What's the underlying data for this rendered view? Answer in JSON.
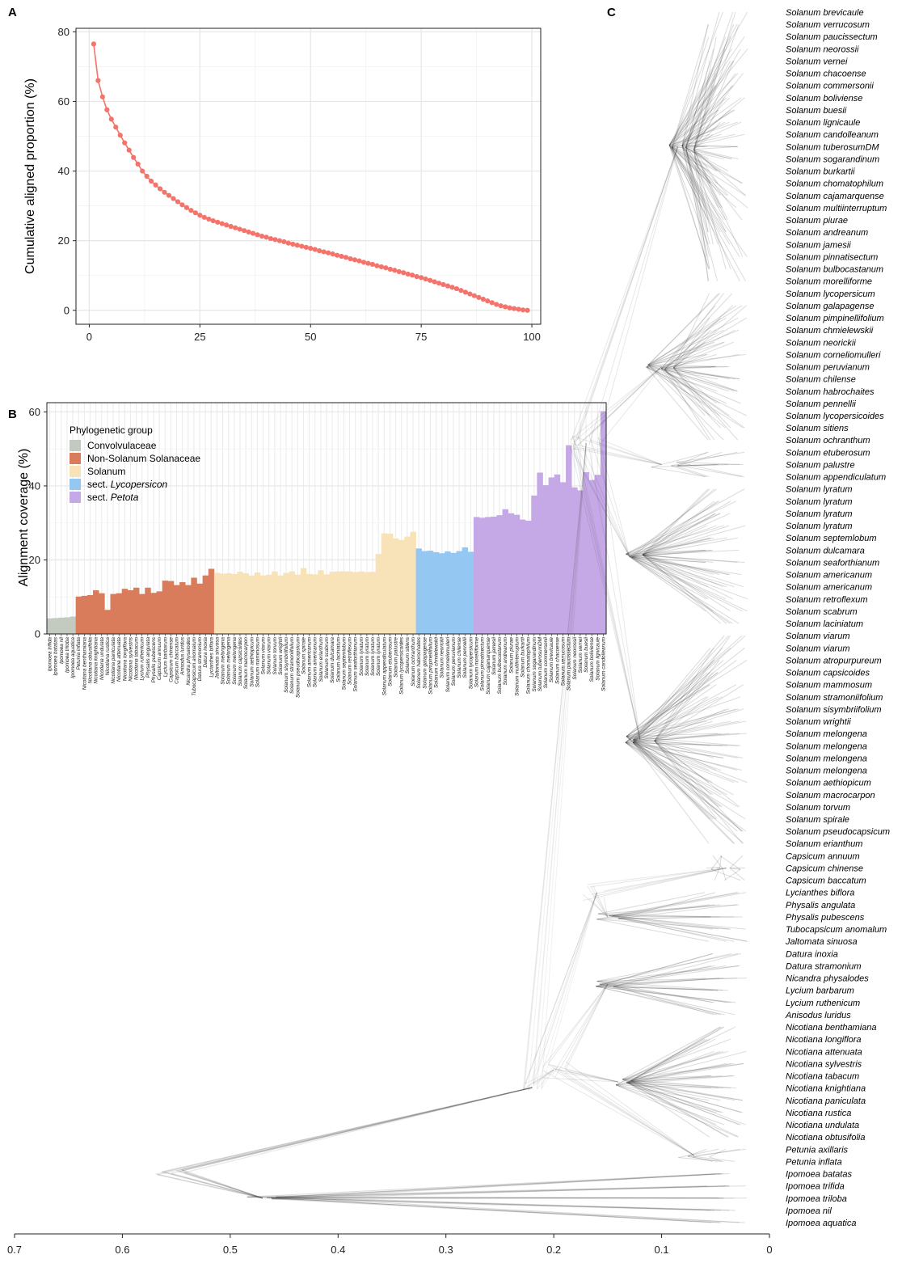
{
  "panels": {
    "a": "A",
    "b": "B",
    "c": "C"
  },
  "colors": {
    "line": "#f4736b",
    "convolvulaceae": "#c3cbc0",
    "non_solanum": "#d87c5c",
    "solanum": "#f8e2b8",
    "lycopersicon": "#94c8f2",
    "petota": "#c5a8e6",
    "tree": "#3a3a3a"
  },
  "chart_data": [
    {
      "type": "line",
      "panel": "A",
      "ylabel": "Cumulative aligned proportion (%)",
      "xlabel": "",
      "xlim": [
        -3,
        102
      ],
      "ylim": [
        -4,
        81
      ],
      "xticks": [
        0,
        25,
        50,
        75,
        100
      ],
      "yticks": [
        0,
        20,
        40,
        60,
        80
      ],
      "grid": true,
      "x": [
        1,
        2,
        3,
        4,
        5,
        6,
        7,
        8,
        9,
        10,
        11,
        12,
        13,
        14,
        15,
        16,
        17,
        18,
        19,
        20,
        21,
        22,
        23,
        24,
        25,
        26,
        27,
        28,
        29,
        30,
        31,
        32,
        33,
        34,
        35,
        36,
        37,
        38,
        39,
        40,
        41,
        42,
        43,
        44,
        45,
        46,
        47,
        48,
        49,
        50,
        51,
        52,
        53,
        54,
        55,
        56,
        57,
        58,
        59,
        60,
        61,
        62,
        63,
        64,
        65,
        66,
        67,
        68,
        69,
        70,
        71,
        72,
        73,
        74,
        75,
        76,
        77,
        78,
        79,
        80,
        81,
        82,
        83,
        84,
        85,
        86,
        87,
        88,
        89,
        90,
        91,
        92,
        93,
        94,
        95,
        96,
        97,
        98,
        99
      ],
      "y": [
        76.5,
        66,
        61.3,
        57.6,
        54.9,
        52.6,
        50.3,
        48.1,
        46,
        43.9,
        42,
        40,
        38.5,
        37.1,
        36,
        34.9,
        33.9,
        33,
        32.1,
        31.2,
        30.3,
        29.5,
        28.7,
        28,
        27.3,
        26.7,
        26.2,
        25.7,
        25.3,
        24.9,
        24.5,
        24.1,
        23.7,
        23.3,
        22.9,
        22.5,
        22.1,
        21.7,
        21.3,
        21,
        20.6,
        20.3,
        20,
        19.7,
        19.3,
        19,
        18.7,
        18.4,
        18.1,
        17.8,
        17.5,
        17.1,
        16.8,
        16.5,
        16.2,
        15.8,
        15.5,
        15.2,
        14.8,
        14.5,
        14.2,
        13.8,
        13.5,
        13.2,
        12.8,
        12.5,
        12.2,
        11.8,
        11.5,
        11.1,
        10.8,
        10.4,
        10.1,
        9.7,
        9.4,
        9,
        8.6,
        8.2,
        7.8,
        7.4,
        7,
        6.6,
        6.2,
        5.7,
        5.2,
        4.7,
        4.2,
        3.7,
        3.2,
        2.7,
        2.2,
        1.7,
        1.3,
        1,
        0.7,
        0.5,
        0.3,
        0.1,
        0
      ]
    },
    {
      "type": "bar",
      "panel": "B",
      "ylabel": "Alignment coverage (%)",
      "xlabel": "",
      "ylim": [
        0,
        62.5
      ],
      "yticks": [
        0,
        20,
        40,
        60
      ],
      "grid": true,
      "legend": {
        "title": "Phylogenetic group",
        "position": "top-left",
        "entries": [
          {
            "key": "convolvulaceae",
            "parts": [
              {
                "text": "Convolvulaceae",
                "italic": false
              }
            ]
          },
          {
            "key": "non_solanum",
            "parts": [
              {
                "text": "Non-Solanum Solanaceae",
                "italic": false
              }
            ]
          },
          {
            "key": "solanum",
            "parts": [
              {
                "text": "Solanum",
                "italic": false
              }
            ]
          },
          {
            "key": "lycopersicon",
            "parts": [
              {
                "text": "sect. ",
                "italic": false
              },
              {
                "text": "Lycopersicon",
                "italic": true
              }
            ]
          },
          {
            "key": "petota",
            "parts": [
              {
                "text": "sect. ",
                "italic": false
              },
              {
                "text": "Petota",
                "italic": true
              }
            ]
          }
        ]
      },
      "series_groups": [
        {
          "group": "convolvulaceae",
          "categories": [
            "Ipomoea trifida",
            "Ipomoea batatas",
            "Ipomoea nil",
            "Ipomoea triloba",
            "Ipomoea aquatica"
          ],
          "values": [
            4.2,
            4.3,
            4.4,
            4.5,
            4.7
          ]
        },
        {
          "group": "non_solanum",
          "categories": [
            "Petunia inflata",
            "Nicotiana benthamiana",
            "Nicotiana obtusifolia",
            "Nicotiana knightiana",
            "Nicotiana undulata",
            "Nicotiana rustica",
            "Nicotiana paniculata",
            "Nicotiana attenuata",
            "Nicotiana longiflora",
            "Nicotiana sylvestris",
            "Nicotiana tabacum",
            "Lycium ruthenicum",
            "Physalis angulata",
            "Physalis pubescens",
            "Capsicum annuum",
            "Lycium barbarum",
            "Capsicum chinense",
            "Capsicum baccatum",
            "Anisodus luridus",
            "Nicandra physalodes",
            "Tubocapsicum anomalum",
            "Datura stramonium",
            "Datura inoxia",
            "Lycianthes biflora"
          ],
          "values": [
            10.1,
            10.3,
            10.5,
            11.8,
            11,
            6.5,
            10.8,
            11,
            12.2,
            11.8,
            12.5,
            10.8,
            12.5,
            11.1,
            11.5,
            14.4,
            14.3,
            13.2,
            14,
            13.2,
            15.2,
            13.6,
            15.8,
            17.6
          ]
        },
        {
          "group": "solanum",
          "categories": [
            "Jaltomata sinuosa",
            "Solanum melongena",
            "Solanum melongena",
            "Solanum melongena",
            "Solanum capsicoides",
            "Solanum macrocarpon",
            "Solanum aethiopicum",
            "Solanum mammosum",
            "Solanum viarum",
            "Solanum viarum",
            "Solanum torvum",
            "Solanum wrightii",
            "Solanum sisymbriifolium",
            "Solanum stramoniifolium",
            "Solanum pseudocapsicum",
            "Solanum spirale",
            "Solanum americanum",
            "Solanum americanum",
            "Solanum erianthum",
            "Solanum scabrum",
            "Solanum dulcamara",
            "Solanum laciniatum",
            "Solanum septemlobum",
            "Solanum retroflexum",
            "Solanum seaforthianum",
            "Solanum lyratum",
            "Solanum lyratum",
            "Solanum lyratum",
            "Solanum lyratum",
            "Solanum appendiculatum",
            "Solanum etuberosum",
            "Solanum palustre",
            "Solanum lycopersicoides",
            "Solanum sitiens",
            "Solanum ochranthum"
          ],
          "values": [
            16.5,
            16.3,
            16.4,
            16.2,
            16.8,
            16.4,
            15.8,
            16.6,
            15.8,
            16,
            16.9,
            15.8,
            16.5,
            16.9,
            16,
            17.8,
            16.2,
            16.1,
            17.2,
            16.1,
            16.8,
            16.9,
            16.9,
            16.9,
            16.7,
            16.9,
            16.7,
            16.8,
            21.6,
            27.2,
            27.1,
            25.8,
            25.4,
            26.3,
            27.6
          ]
        },
        {
          "group": "lycopersicon",
          "categories": [
            "Solanum habrochaites",
            "Solanum galapagense",
            "Solanum pimpinellifolium",
            "Solanum chmielewskii",
            "Solanum neorickii",
            "Solanum corneliomulleri",
            "Solanum peruvianum",
            "Solanum chilense",
            "Solanum pennellii",
            "Solanum lycopersicum"
          ],
          "values": [
            23.1,
            22.4,
            22.5,
            22.1,
            21.8,
            22.3,
            21.9,
            22.4,
            23.4,
            22.2
          ]
        },
        {
          "group": "petota",
          "categories": [
            "Solanum morelliforme",
            "Solanum pinnatisectum",
            "Solanum cajamarquense",
            "Solanum jamesii",
            "Solanum bulbocastanum",
            "Solanum andreanum",
            "Solanum piurae",
            "Solanum multiinterruptum",
            "Solanum burkartii",
            "Solanum chomatophilum",
            "Solanum sogarandinum",
            "Solanum tuberosumDM",
            "Solanum commersonii",
            "Solanum brevicaule",
            "Solanum chacoense",
            "Solanum verrucosum",
            "Solanum paucissectum",
            "Solanum neorossii",
            "Solanum vernei",
            "Solanum buesii",
            "Solanum boliviense",
            "Solanum lignicaule",
            "Solanum candolleanum"
          ],
          "values": [
            31.6,
            31.4,
            31.6,
            31.7,
            32.1,
            33.7,
            32.6,
            32.2,
            30.9,
            30.6,
            37.4,
            43.6,
            40.2,
            42.3,
            43.1,
            41,
            51,
            39.6,
            38.8,
            43.7,
            41.6,
            43,
            60.2
          ]
        }
      ]
    },
    {
      "type": "tree",
      "panel": "C",
      "xlim": [
        0.7,
        0
      ],
      "xticks": [
        0.7,
        0.6,
        0.5,
        0.4,
        0.3,
        0.2,
        0.1,
        0
      ],
      "tips": [
        "Solanum brevicaule",
        "Solanum verrucosum",
        "Solanum paucissectum",
        "Solanum neorossii",
        "Solanum vernei",
        "Solanum chacoense",
        "Solanum commersonii",
        "Solanum boliviense",
        "Solanum buesii",
        "Solanum lignicaule",
        "Solanum candolleanum",
        "Solanum tuberosumDM",
        "Solanum sogarandinum",
        "Solanum burkartii",
        "Solanum chomatophilum",
        "Solanum cajamarquense",
        "Solanum multiinterruptum",
        "Solanum piurae",
        "Solanum andreanum",
        "Solanum jamesii",
        "Solanum pinnatisectum",
        "Solanum bulbocastanum",
        "Solanum morelliforme",
        "Solanum lycopersicum",
        "Solanum galapagense",
        "Solanum pimpinellifolium",
        "Solanum chmielewskii",
        "Solanum neorickii",
        "Solanum corneliomulleri",
        "Solanum peruvianum",
        "Solanum chilense",
        "Solanum habrochaites",
        "Solanum pennellii",
        "Solanum lycopersicoides",
        "Solanum sitiens",
        "Solanum ochranthum",
        "Solanum etuberosum",
        "Solanum palustre",
        "Solanum appendiculatum",
        "Solanum lyratum",
        "Solanum lyratum",
        "Solanum lyratum",
        "Solanum lyratum",
        "Solanum septemlobum",
        "Solanum dulcamara",
        "Solanum seaforthianum",
        "Solanum americanum",
        "Solanum americanum",
        "Solanum retroflexum",
        "Solanum scabrum",
        "Solanum laciniatum",
        "Solanum viarum",
        "Solanum viarum",
        "Solanum atropurpureum",
        "Solanum capsicoides",
        "Solanum mammosum",
        "Solanum stramoniifolium",
        "Solanum sisymbriifolium",
        "Solanum wrightii",
        "Solanum melongena",
        "Solanum melongena",
        "Solanum melongena",
        "Solanum melongena",
        "Solanum aethiopicum",
        "Solanum macrocarpon",
        "Solanum torvum",
        "Solanum spirale",
        "Solanum pseudocapsicum",
        "Solanum erianthum",
        "Capsicum annuum",
        "Capsicum chinense",
        "Capsicum baccatum",
        "Lycianthes biflora",
        "Physalis angulata",
        "Physalis pubescens",
        "Tubocapsicum anomalum",
        "Jaltomata sinuosa",
        "Datura inoxia",
        "Datura stramonium",
        "Nicandra physalodes",
        "Lycium barbarum",
        "Lycium ruthenicum",
        "Anisodus luridus",
        "Nicotiana benthamiana",
        "Nicotiana longiflora",
        "Nicotiana attenuata",
        "Nicotiana sylvestris",
        "Nicotiana tabacum",
        "Nicotiana knightiana",
        "Nicotiana paniculata",
        "Nicotiana rustica",
        "Nicotiana undulata",
        "Nicotiana obtusifolia",
        "Petunia axillaris",
        "Petunia inflata",
        "Ipomoea batatas",
        "Ipomoea trifida",
        "Ipomoea triloba",
        "Ipomoea nil",
        "Ipomoea aquatica"
      ]
    }
  ]
}
